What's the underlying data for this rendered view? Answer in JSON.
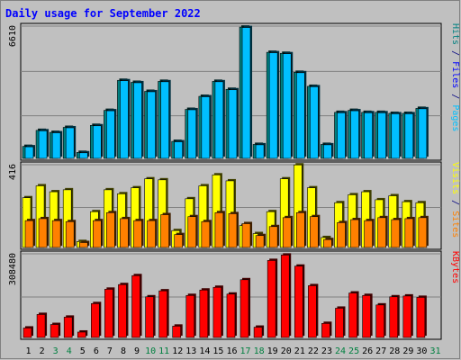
{
  "chart_data": {
    "type": "bar",
    "title": "Daily usage for September 2022",
    "categories": [
      "1",
      "2",
      "3",
      "4",
      "5",
      "6",
      "7",
      "8",
      "9",
      "10",
      "11",
      "12",
      "13",
      "14",
      "15",
      "16",
      "17",
      "18",
      "19",
      "20",
      "21",
      "22",
      "23",
      "24",
      "25",
      "26",
      "27",
      "28",
      "29",
      "30",
      "31"
    ],
    "weekend_days": [
      "3",
      "4",
      "10",
      "11",
      "17",
      "18",
      "24",
      "25",
      "31"
    ],
    "panels": [
      {
        "name": "hits-files",
        "max_label": "6610",
        "ymax": 6610,
        "side_labels": [
          {
            "text": "Pages",
            "color": "#00bfff"
          },
          {
            "text": " / ",
            "color": "#000080"
          },
          {
            "text": "Files",
            "color": "#0000ff"
          },
          {
            "text": " / ",
            "color": "#000080"
          },
          {
            "text": "Hits",
            "color": "#008080"
          }
        ],
        "series": [
          {
            "name": "Hits",
            "color": "#008080",
            "values": [
              600,
              1400,
              1300,
              1550,
              300,
              1650,
              2400,
              3900,
              3800,
              3350,
              3850,
              850,
              2450,
              3100,
              3850,
              3450,
              6560,
              700,
              5300,
              5250,
              4300,
              3600,
              700,
              2300,
              2400,
              2300,
              2300,
              2250,
              2250,
              2500
            ]
          },
          {
            "name": "Files",
            "color": "#00bfff",
            "values": [
              580,
              1380,
              1280,
              1530,
              280,
              1630,
              2380,
              3880,
              3780,
              3330,
              3830,
              830,
              2430,
              3080,
              3830,
              3430,
              6540,
              680,
              5280,
              5230,
              4280,
              3580,
              680,
              2280,
              2380,
              2280,
              2280,
              2230,
              2230,
              2480
            ]
          }
        ]
      },
      {
        "name": "visits-sites",
        "max_label": "416",
        "ymax": 416,
        "side_labels": [
          {
            "text": "Sites",
            "color": "#ff8000"
          },
          {
            "text": " / ",
            "color": "#000080"
          },
          {
            "text": "Visits",
            "color": "#ffff00"
          }
        ],
        "series": [
          {
            "name": "Visits",
            "color": "#ffff00",
            "values": [
              250,
              310,
              280,
              290,
              30,
              180,
              290,
              270,
              300,
              345,
              340,
              85,
              245,
              310,
              365,
              335,
              110,
              70,
              180,
              345,
              415,
              300,
              50,
              225,
              265,
              280,
              240,
              260,
              230,
              225
            ]
          },
          {
            "name": "Sites",
            "color": "#ff8000",
            "values": [
              135,
              145,
              135,
              130,
              25,
              135,
              175,
              145,
              135,
              135,
              165,
              65,
              155,
              130,
              175,
              170,
              120,
              60,
              105,
              150,
              175,
              155,
              40,
              125,
              140,
              135,
              150,
              140,
              145,
              150
            ]
          }
        ]
      },
      {
        "name": "kbytes",
        "max_label": "308480",
        "ymax": 308480,
        "side_labels": [
          {
            "text": "KBytes",
            "color": "#ff0000"
          }
        ],
        "series": [
          {
            "name": "KBytes",
            "color": "#ff0000",
            "values": [
              35000,
              85000,
              48000,
              75000,
              20000,
              125000,
              178000,
              195000,
              228000,
              150000,
              172000,
              42000,
              155000,
              175000,
              185000,
              160000,
              213000,
              38000,
              284000,
              304000,
              263000,
              191000,
              52000,
              108000,
              164000,
              155000,
              120000,
              150000,
              153000,
              148000
            ]
          }
        ]
      }
    ]
  }
}
